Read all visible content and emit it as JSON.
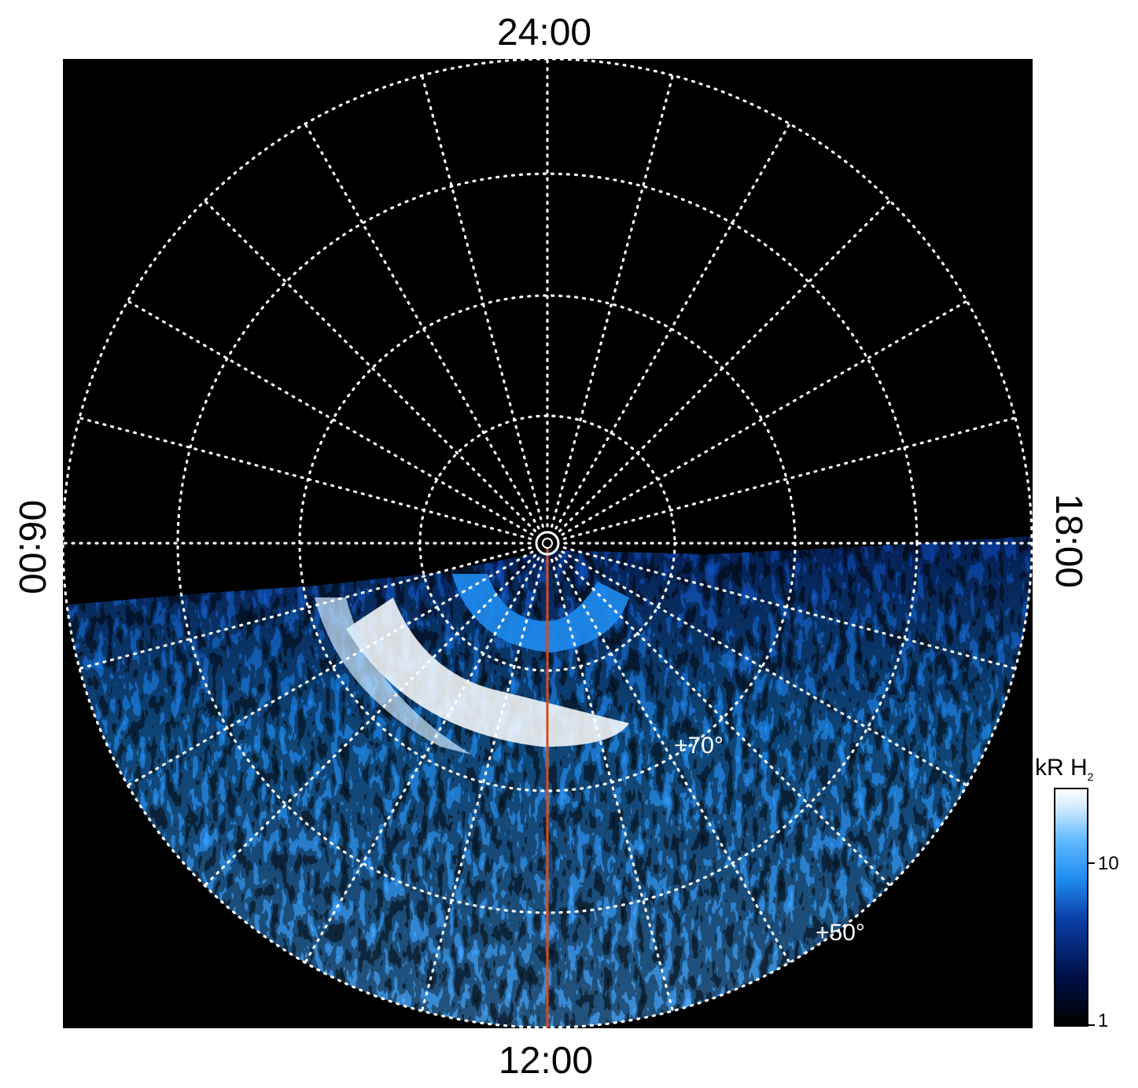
{
  "local_time_labels": {
    "top": "24:00",
    "bottom": "12:00",
    "left": "06:00",
    "right": "18:00"
  },
  "latitude_labels": [
    {
      "text": "+70°",
      "latitude": 70
    },
    {
      "text": "+50°",
      "latitude": 50
    }
  ],
  "colorbar": {
    "title": "kR H",
    "title_subscript": "2",
    "tick_labels": [
      "10",
      "1"
    ],
    "colors": [
      "#000000",
      "#00124d",
      "#0a3fa8",
      "#1f8cf0",
      "#5fb8ff",
      "#ffffff"
    ]
  },
  "grid": {
    "color": "#ffffff",
    "style": "dotted",
    "meridian_count": 24
  },
  "central_meridian_color": "#d9481b"
}
